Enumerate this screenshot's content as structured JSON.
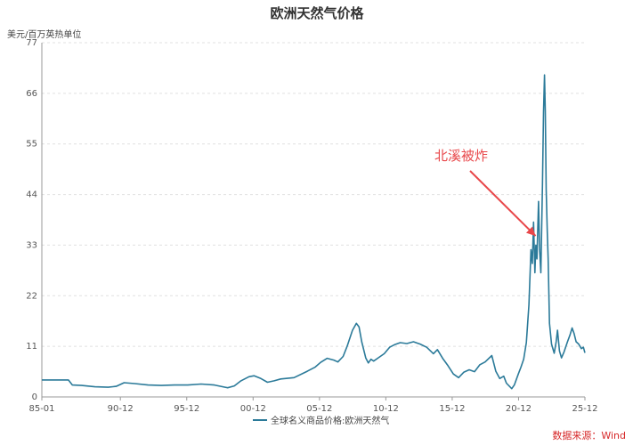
{
  "chart_data": {
    "type": "line",
    "title": "欧洲天然气价格",
    "ylabel": "美元/百万英热单位",
    "xlabel": "",
    "ylim": [
      0,
      77
    ],
    "yticks": [
      0,
      11,
      22,
      33,
      44,
      55,
      66,
      77
    ],
    "xticks": [
      {
        "label": "85-01",
        "x": 1985.0
      },
      {
        "label": "90-12",
        "x": 1990.917
      },
      {
        "label": "95-12",
        "x": 1995.917
      },
      {
        "label": "00-12",
        "x": 2000.917
      },
      {
        "label": "05-12",
        "x": 2005.917
      },
      {
        "label": "10-12",
        "x": 2010.917
      },
      {
        "label": "15-12",
        "x": 2015.917
      },
      {
        "label": "20-12",
        "x": 2020.917
      },
      {
        "label": "25-12",
        "x": 2025.917
      }
    ],
    "xlim": [
      1985.0,
      2025.917
    ],
    "grid": {
      "horizontal": true,
      "style": "dashed"
    },
    "legend": {
      "position": "bottom"
    },
    "series": [
      {
        "name": "全球名义商品价格:欧洲天然气",
        "color": "#2b7a99",
        "points": [
          [
            1985.0,
            3.7
          ],
          [
            1986.0,
            3.7
          ],
          [
            1987.0,
            3.7
          ],
          [
            1987.3,
            2.6
          ],
          [
            1988.0,
            2.5
          ],
          [
            1989.0,
            2.2
          ],
          [
            1990.0,
            2.1
          ],
          [
            1990.6,
            2.3
          ],
          [
            1991.2,
            3.1
          ],
          [
            1992.0,
            2.9
          ],
          [
            1993.0,
            2.6
          ],
          [
            1994.0,
            2.5
          ],
          [
            1995.0,
            2.6
          ],
          [
            1996.0,
            2.6
          ],
          [
            1997.0,
            2.8
          ],
          [
            1998.0,
            2.6
          ],
          [
            1999.0,
            2.0
          ],
          [
            1999.5,
            2.4
          ],
          [
            2000.0,
            3.5
          ],
          [
            2000.6,
            4.4
          ],
          [
            2001.0,
            4.6
          ],
          [
            2001.5,
            4.0
          ],
          [
            2002.0,
            3.2
          ],
          [
            2002.5,
            3.5
          ],
          [
            2003.0,
            3.9
          ],
          [
            2004.0,
            4.2
          ],
          [
            2005.0,
            5.6
          ],
          [
            2005.6,
            6.5
          ],
          [
            2006.0,
            7.5
          ],
          [
            2006.5,
            8.4
          ],
          [
            2007.0,
            8.0
          ],
          [
            2007.3,
            7.6
          ],
          [
            2007.7,
            8.8
          ],
          [
            2008.0,
            11.0
          ],
          [
            2008.4,
            14.5
          ],
          [
            2008.7,
            16.0
          ],
          [
            2008.9,
            15.2
          ],
          [
            2009.1,
            12.0
          ],
          [
            2009.4,
            8.5
          ],
          [
            2009.6,
            7.4
          ],
          [
            2009.8,
            8.2
          ],
          [
            2010.0,
            7.8
          ],
          [
            2010.4,
            8.6
          ],
          [
            2010.8,
            9.4
          ],
          [
            2011.2,
            10.8
          ],
          [
            2011.6,
            11.4
          ],
          [
            2012.0,
            11.8
          ],
          [
            2012.5,
            11.6
          ],
          [
            2013.0,
            12.0
          ],
          [
            2013.5,
            11.5
          ],
          [
            2014.0,
            10.8
          ],
          [
            2014.5,
            9.4
          ],
          [
            2014.8,
            10.3
          ],
          [
            2015.2,
            8.4
          ],
          [
            2015.6,
            6.8
          ],
          [
            2016.0,
            5.0
          ],
          [
            2016.4,
            4.2
          ],
          [
            2016.8,
            5.4
          ],
          [
            2017.2,
            5.9
          ],
          [
            2017.6,
            5.5
          ],
          [
            2018.0,
            7.0
          ],
          [
            2018.4,
            7.6
          ],
          [
            2018.9,
            9.0
          ],
          [
            2019.2,
            5.6
          ],
          [
            2019.5,
            4.0
          ],
          [
            2019.8,
            4.5
          ],
          [
            2020.0,
            3.0
          ],
          [
            2020.4,
            1.8
          ],
          [
            2020.6,
            2.6
          ],
          [
            2020.9,
            5.0
          ],
          [
            2021.1,
            6.5
          ],
          [
            2021.3,
            8.2
          ],
          [
            2021.5,
            11.8
          ],
          [
            2021.7,
            20.0
          ],
          [
            2021.85,
            32.0
          ],
          [
            2021.95,
            29.0
          ],
          [
            2022.05,
            38.0
          ],
          [
            2022.15,
            27.0
          ],
          [
            2022.22,
            33.0
          ],
          [
            2022.3,
            30.0
          ],
          [
            2022.42,
            42.5
          ],
          [
            2022.5,
            32.0
          ],
          [
            2022.6,
            27.0
          ],
          [
            2022.72,
            46.0
          ],
          [
            2022.8,
            62.0
          ],
          [
            2022.87,
            70.0
          ],
          [
            2022.93,
            62.0
          ],
          [
            2023.0,
            45.0
          ],
          [
            2023.08,
            36.0
          ],
          [
            2023.15,
            30.0
          ],
          [
            2023.25,
            16.0
          ],
          [
            2023.4,
            11.5
          ],
          [
            2023.6,
            9.5
          ],
          [
            2023.75,
            12.0
          ],
          [
            2023.85,
            14.5
          ],
          [
            2024.0,
            10.0
          ],
          [
            2024.15,
            8.5
          ],
          [
            2024.35,
            9.8
          ],
          [
            2024.6,
            12.0
          ],
          [
            2024.8,
            13.5
          ],
          [
            2024.95,
            15.0
          ],
          [
            2025.1,
            13.8
          ],
          [
            2025.25,
            12.0
          ],
          [
            2025.45,
            11.5
          ],
          [
            2025.65,
            10.5
          ],
          [
            2025.8,
            10.8
          ],
          [
            2025.917,
            9.6
          ]
        ]
      }
    ],
    "annotations": [
      {
        "text": "北溪被炸",
        "color": "#e8474a",
        "arrow_to": [
          2022.2,
          35.0
        ]
      }
    ]
  },
  "source": "数据来源：Wind"
}
